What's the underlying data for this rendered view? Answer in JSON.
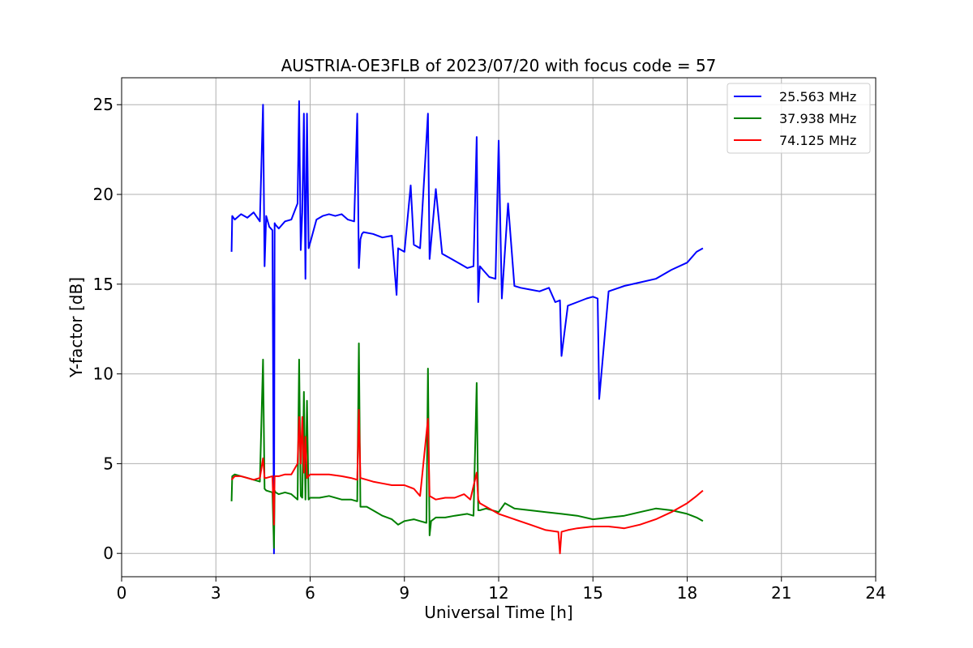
{
  "chart_data": {
    "type": "line",
    "title": "AUSTRIA-OE3FLB of 2023/07/20 with focus code = 57",
    "xlabel": "Universal Time [h]",
    "ylabel": "Y-factor [dB]",
    "xlim": [
      0,
      24
    ],
    "ylim": [
      -1.3,
      26.5
    ],
    "xticks": [
      0,
      3,
      6,
      9,
      12,
      15,
      18,
      21,
      24
    ],
    "yticks": [
      0,
      5,
      10,
      15,
      20,
      25
    ],
    "grid": true,
    "legend_position": "upper right",
    "series": [
      {
        "name": "25.563 MHz",
        "color": "#0000ff",
        "x": [
          3.5,
          3.52,
          3.6,
          3.8,
          4.0,
          4.2,
          4.4,
          4.5,
          4.55,
          4.6,
          4.7,
          4.8,
          4.85,
          4.87,
          4.9,
          5.0,
          5.2,
          5.4,
          5.6,
          5.65,
          5.7,
          5.75,
          5.8,
          5.85,
          5.9,
          5.95,
          6.0,
          6.2,
          6.4,
          6.6,
          6.8,
          7.0,
          7.2,
          7.4,
          7.5,
          7.55,
          7.6,
          7.65,
          7.7,
          8.0,
          8.3,
          8.6,
          8.75,
          8.8,
          9.0,
          9.2,
          9.3,
          9.5,
          9.75,
          9.8,
          10.0,
          10.2,
          10.5,
          10.8,
          11.0,
          11.2,
          11.3,
          11.35,
          11.4,
          11.5,
          11.7,
          11.9,
          12.0,
          12.1,
          12.3,
          12.5,
          12.7,
          13.0,
          13.3,
          13.6,
          13.8,
          13.95,
          14.0,
          14.2,
          14.5,
          14.8,
          15.0,
          15.15,
          15.2,
          15.5,
          16.0,
          16.5,
          17.0,
          17.5,
          18.0,
          18.3,
          18.5
        ],
        "y": [
          16.8,
          18.8,
          18.6,
          18.9,
          18.7,
          19.0,
          18.5,
          25.0,
          16.0,
          18.8,
          18.2,
          18.0,
          0.0,
          18.4,
          18.3,
          18.1,
          18.5,
          18.6,
          19.5,
          25.2,
          16.9,
          19.0,
          24.5,
          15.3,
          24.5,
          17.0,
          17.3,
          18.6,
          18.8,
          18.9,
          18.8,
          18.9,
          18.6,
          18.5,
          24.5,
          15.9,
          17.5,
          17.8,
          17.9,
          17.8,
          17.6,
          17.7,
          14.4,
          17.0,
          16.8,
          20.5,
          17.2,
          17.0,
          24.5,
          16.4,
          20.3,
          16.7,
          16.4,
          16.1,
          15.9,
          16.0,
          23.2,
          14.0,
          16.0,
          15.8,
          15.4,
          15.3,
          23.0,
          14.2,
          19.5,
          14.9,
          14.8,
          14.7,
          14.6,
          14.8,
          14.0,
          14.1,
          11.0,
          13.8,
          14.0,
          14.2,
          14.3,
          14.2,
          8.6,
          14.6,
          14.9,
          15.1,
          15.3,
          15.8,
          16.2,
          16.8,
          17.0
        ]
      },
      {
        "name": "37.938 MHz",
        "color": "#008000",
        "x": [
          3.5,
          3.52,
          3.6,
          3.8,
          4.0,
          4.2,
          4.4,
          4.5,
          4.55,
          4.6,
          4.8,
          4.85,
          4.87,
          4.9,
          5.0,
          5.2,
          5.4,
          5.6,
          5.65,
          5.7,
          5.75,
          5.8,
          5.85,
          5.9,
          5.95,
          6.0,
          6.3,
          6.6,
          7.0,
          7.3,
          7.5,
          7.55,
          7.6,
          7.8,
          8.0,
          8.3,
          8.6,
          8.8,
          9.0,
          9.3,
          9.5,
          9.7,
          9.75,
          9.8,
          9.85,
          10.0,
          10.3,
          10.6,
          11.0,
          11.2,
          11.3,
          11.35,
          11.4,
          11.6,
          12.0,
          12.2,
          12.5,
          13.0,
          13.5,
          14.0,
          14.5,
          15.0,
          15.5,
          16.0,
          16.5,
          17.0,
          17.5,
          18.0,
          18.3,
          18.5
        ],
        "y": [
          2.9,
          4.3,
          4.4,
          4.3,
          4.2,
          4.1,
          4.0,
          10.8,
          3.6,
          3.5,
          3.4,
          0.3,
          3.5,
          3.4,
          3.3,
          3.4,
          3.3,
          3.0,
          10.8,
          3.2,
          3.1,
          9.0,
          3.0,
          8.5,
          3.0,
          3.1,
          3.1,
          3.2,
          3.0,
          3.0,
          2.9,
          11.7,
          2.6,
          2.6,
          2.4,
          2.1,
          1.9,
          1.6,
          1.8,
          1.9,
          1.8,
          1.7,
          10.3,
          1.0,
          1.8,
          2.0,
          2.0,
          2.1,
          2.2,
          2.1,
          9.5,
          2.4,
          2.4,
          2.5,
          2.3,
          2.8,
          2.5,
          2.4,
          2.3,
          2.2,
          2.1,
          1.9,
          2.0,
          2.1,
          2.3,
          2.5,
          2.4,
          2.2,
          2.0,
          1.8
        ]
      },
      {
        "name": "74.125 MHz",
        "color": "#ff0000",
        "x": [
          3.5,
          3.6,
          3.8,
          4.0,
          4.2,
          4.4,
          4.5,
          4.55,
          4.6,
          4.8,
          4.85,
          4.87,
          4.9,
          5.0,
          5.2,
          5.4,
          5.6,
          5.65,
          5.7,
          5.75,
          5.8,
          5.85,
          5.9,
          6.0,
          6.3,
          6.6,
          7.0,
          7.3,
          7.5,
          7.55,
          7.6,
          7.8,
          8.0,
          8.3,
          8.6,
          9.0,
          9.3,
          9.5,
          9.75,
          9.8,
          10.0,
          10.3,
          10.6,
          10.9,
          11.1,
          11.3,
          11.35,
          11.4,
          11.6,
          12.0,
          12.5,
          13.0,
          13.5,
          13.9,
          13.95,
          14.0,
          14.2,
          14.5,
          15.0,
          15.5,
          16.0,
          16.5,
          17.0,
          17.5,
          18.0,
          18.3,
          18.5
        ],
        "y": [
          4.1,
          4.3,
          4.3,
          4.2,
          4.1,
          4.2,
          5.3,
          4.2,
          4.2,
          4.3,
          1.6,
          4.3,
          4.3,
          4.3,
          4.4,
          4.4,
          5.0,
          7.6,
          5.0,
          7.6,
          4.5,
          6.5,
          4.2,
          4.4,
          4.4,
          4.4,
          4.3,
          4.2,
          4.1,
          8.0,
          4.2,
          4.1,
          4.0,
          3.9,
          3.8,
          3.8,
          3.6,
          3.2,
          7.5,
          3.2,
          3.0,
          3.1,
          3.1,
          3.3,
          3.0,
          4.5,
          3.0,
          2.8,
          2.6,
          2.2,
          1.9,
          1.6,
          1.3,
          1.2,
          0.0,
          1.2,
          1.3,
          1.4,
          1.5,
          1.5,
          1.4,
          1.6,
          1.9,
          2.3,
          2.8,
          3.2,
          3.5
        ]
      }
    ]
  }
}
